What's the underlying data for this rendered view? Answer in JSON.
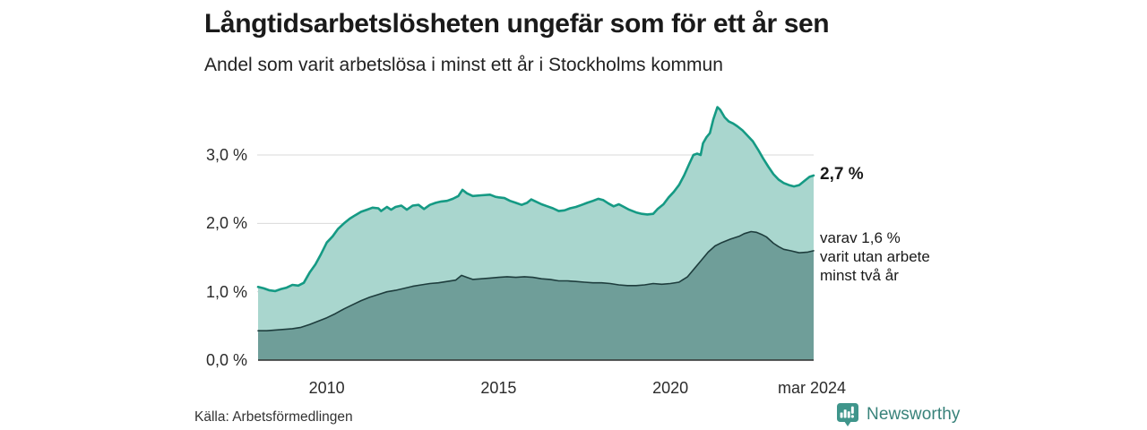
{
  "header": {
    "title": "Långtidsarbetslösheten ungefär som för ett år sen",
    "subtitle": "Andel som varit arbetslösa i minst ett år i Stockholms kommun"
  },
  "annotations": {
    "total_label": "2,7 %",
    "subset_lines": [
      "varav 1,6 %",
      "varit utan arbete",
      "minst två år"
    ]
  },
  "footer": {
    "source": "Källa: Arbetsförmedlingen",
    "brand": "Newsworthy"
  },
  "colors": {
    "total_line": "#159a84",
    "total_fill": "#a9d6ce",
    "subset_line": "#1e3d3d",
    "subset_fill": "#6f9e99",
    "gridline": "#dadada",
    "baseline": "#2e2e2e",
    "axis_text": "#2b2b2b",
    "brand_teal": "#3f958b"
  },
  "chart_data": {
    "type": "area",
    "title": "Långtidsarbetslösheten ungefär som för ett år sen",
    "subtitle": "Andel som varit arbetslösa i minst ett år i Stockholms kommun",
    "xlabel": "",
    "ylabel": "",
    "x_domain": [
      2008,
      2024.17
    ],
    "y_domain": [
      0,
      3.85
    ],
    "grid": true,
    "legend": "none",
    "latest_values": {
      "total": 2.7,
      "subset": 1.6,
      "latest_x_label": "mar 2024"
    },
    "yticks": [
      {
        "value": 0,
        "label": "0,0 %"
      },
      {
        "value": 1,
        "label": "1,0 %"
      },
      {
        "value": 2,
        "label": "2,0 %"
      },
      {
        "value": 3,
        "label": "3,0 %"
      }
    ],
    "xticks": [
      {
        "value": 2010,
        "label": "2010"
      },
      {
        "value": 2015,
        "label": "2015"
      },
      {
        "value": 2020,
        "label": "2020"
      },
      {
        "value": 2024.17,
        "label": "mar 2024"
      }
    ],
    "series": [
      {
        "name": "Andel arbetslösa minst ett år",
        "points": [
          [
            2008.0,
            1.07
          ],
          [
            2008.17,
            1.05
          ],
          [
            2008.33,
            1.02
          ],
          [
            2008.5,
            1.01
          ],
          [
            2008.67,
            1.04
          ],
          [
            2008.83,
            1.06
          ],
          [
            2009.0,
            1.1
          ],
          [
            2009.17,
            1.09
          ],
          [
            2009.33,
            1.13
          ],
          [
            2009.5,
            1.28
          ],
          [
            2009.67,
            1.4
          ],
          [
            2009.83,
            1.55
          ],
          [
            2010.0,
            1.72
          ],
          [
            2010.17,
            1.81
          ],
          [
            2010.33,
            1.92
          ],
          [
            2010.5,
            2.0
          ],
          [
            2010.67,
            2.07
          ],
          [
            2010.83,
            2.12
          ],
          [
            2011.0,
            2.17
          ],
          [
            2011.17,
            2.2
          ],
          [
            2011.33,
            2.23
          ],
          [
            2011.5,
            2.22
          ],
          [
            2011.58,
            2.18
          ],
          [
            2011.75,
            2.24
          ],
          [
            2011.87,
            2.2
          ],
          [
            2012.0,
            2.24
          ],
          [
            2012.17,
            2.26
          ],
          [
            2012.33,
            2.2
          ],
          [
            2012.5,
            2.26
          ],
          [
            2012.67,
            2.27
          ],
          [
            2012.83,
            2.21
          ],
          [
            2013.0,
            2.27
          ],
          [
            2013.17,
            2.3
          ],
          [
            2013.33,
            2.32
          ],
          [
            2013.5,
            2.33
          ],
          [
            2013.67,
            2.36
          ],
          [
            2013.83,
            2.4
          ],
          [
            2013.95,
            2.49
          ],
          [
            2014.08,
            2.44
          ],
          [
            2014.25,
            2.4
          ],
          [
            2014.5,
            2.41
          ],
          [
            2014.75,
            2.42
          ],
          [
            2014.9,
            2.39
          ],
          [
            2015.0,
            2.38
          ],
          [
            2015.17,
            2.37
          ],
          [
            2015.33,
            2.33
          ],
          [
            2015.5,
            2.3
          ],
          [
            2015.67,
            2.27
          ],
          [
            2015.83,
            2.3
          ],
          [
            2015.95,
            2.35
          ],
          [
            2016.08,
            2.32
          ],
          [
            2016.25,
            2.28
          ],
          [
            2016.42,
            2.25
          ],
          [
            2016.58,
            2.22
          ],
          [
            2016.75,
            2.18
          ],
          [
            2016.92,
            2.19
          ],
          [
            2017.08,
            2.22
          ],
          [
            2017.25,
            2.24
          ],
          [
            2017.42,
            2.27
          ],
          [
            2017.58,
            2.3
          ],
          [
            2017.75,
            2.33
          ],
          [
            2017.9,
            2.36
          ],
          [
            2018.05,
            2.34
          ],
          [
            2018.2,
            2.29
          ],
          [
            2018.35,
            2.25
          ],
          [
            2018.5,
            2.28
          ],
          [
            2018.65,
            2.24
          ],
          [
            2018.8,
            2.2
          ],
          [
            2019.0,
            2.16
          ],
          [
            2019.17,
            2.14
          ],
          [
            2019.33,
            2.13
          ],
          [
            2019.5,
            2.14
          ],
          [
            2019.63,
            2.21
          ],
          [
            2019.8,
            2.28
          ],
          [
            2019.95,
            2.38
          ],
          [
            2020.1,
            2.46
          ],
          [
            2020.25,
            2.56
          ],
          [
            2020.4,
            2.7
          ],
          [
            2020.55,
            2.87
          ],
          [
            2020.67,
            3.0
          ],
          [
            2020.78,
            3.02
          ],
          [
            2020.88,
            3.0
          ],
          [
            2020.95,
            3.17
          ],
          [
            2021.05,
            3.26
          ],
          [
            2021.15,
            3.32
          ],
          [
            2021.25,
            3.52
          ],
          [
            2021.37,
            3.7
          ],
          [
            2021.45,
            3.66
          ],
          [
            2021.58,
            3.55
          ],
          [
            2021.7,
            3.49
          ],
          [
            2021.83,
            3.46
          ],
          [
            2021.95,
            3.42
          ],
          [
            2022.1,
            3.36
          ],
          [
            2022.25,
            3.28
          ],
          [
            2022.4,
            3.2
          ],
          [
            2022.55,
            3.08
          ],
          [
            2022.7,
            2.95
          ],
          [
            2022.85,
            2.83
          ],
          [
            2023.0,
            2.72
          ],
          [
            2023.15,
            2.64
          ],
          [
            2023.3,
            2.59
          ],
          [
            2023.45,
            2.56
          ],
          [
            2023.6,
            2.54
          ],
          [
            2023.75,
            2.56
          ],
          [
            2023.9,
            2.62
          ],
          [
            2024.05,
            2.68
          ],
          [
            2024.17,
            2.7
          ]
        ]
      },
      {
        "name": "varav utan arbete minst två år",
        "points": [
          [
            2008.0,
            0.43
          ],
          [
            2008.25,
            0.43
          ],
          [
            2008.5,
            0.44
          ],
          [
            2008.75,
            0.45
          ],
          [
            2009.0,
            0.46
          ],
          [
            2009.25,
            0.48
          ],
          [
            2009.5,
            0.52
          ],
          [
            2009.75,
            0.57
          ],
          [
            2010.0,
            0.62
          ],
          [
            2010.25,
            0.68
          ],
          [
            2010.5,
            0.75
          ],
          [
            2010.75,
            0.81
          ],
          [
            2011.0,
            0.87
          ],
          [
            2011.25,
            0.92
          ],
          [
            2011.5,
            0.96
          ],
          [
            2011.75,
            1.0
          ],
          [
            2012.0,
            1.02
          ],
          [
            2012.25,
            1.05
          ],
          [
            2012.5,
            1.08
          ],
          [
            2012.75,
            1.1
          ],
          [
            2013.0,
            1.12
          ],
          [
            2013.25,
            1.13
          ],
          [
            2013.5,
            1.15
          ],
          [
            2013.75,
            1.17
          ],
          [
            2013.92,
            1.24
          ],
          [
            2014.08,
            1.21
          ],
          [
            2014.25,
            1.18
          ],
          [
            2014.5,
            1.19
          ],
          [
            2014.75,
            1.2
          ],
          [
            2015.0,
            1.21
          ],
          [
            2015.25,
            1.22
          ],
          [
            2015.5,
            1.21
          ],
          [
            2015.75,
            1.22
          ],
          [
            2016.0,
            1.21
          ],
          [
            2016.25,
            1.19
          ],
          [
            2016.5,
            1.18
          ],
          [
            2016.75,
            1.16
          ],
          [
            2017.0,
            1.16
          ],
          [
            2017.25,
            1.15
          ],
          [
            2017.5,
            1.14
          ],
          [
            2017.75,
            1.13
          ],
          [
            2018.0,
            1.13
          ],
          [
            2018.25,
            1.12
          ],
          [
            2018.5,
            1.1
          ],
          [
            2018.75,
            1.09
          ],
          [
            2019.0,
            1.09
          ],
          [
            2019.25,
            1.1
          ],
          [
            2019.5,
            1.12
          ],
          [
            2019.75,
            1.11
          ],
          [
            2020.0,
            1.12
          ],
          [
            2020.25,
            1.14
          ],
          [
            2020.5,
            1.22
          ],
          [
            2020.7,
            1.34
          ],
          [
            2020.9,
            1.46
          ],
          [
            2021.1,
            1.58
          ],
          [
            2021.3,
            1.67
          ],
          [
            2021.5,
            1.72
          ],
          [
            2021.75,
            1.77
          ],
          [
            2022.0,
            1.81
          ],
          [
            2022.15,
            1.85
          ],
          [
            2022.35,
            1.88
          ],
          [
            2022.5,
            1.87
          ],
          [
            2022.65,
            1.84
          ],
          [
            2022.8,
            1.8
          ],
          [
            2023.0,
            1.71
          ],
          [
            2023.15,
            1.66
          ],
          [
            2023.3,
            1.62
          ],
          [
            2023.5,
            1.6
          ],
          [
            2023.75,
            1.57
          ],
          [
            2024.0,
            1.58
          ],
          [
            2024.17,
            1.6
          ]
        ]
      }
    ]
  }
}
